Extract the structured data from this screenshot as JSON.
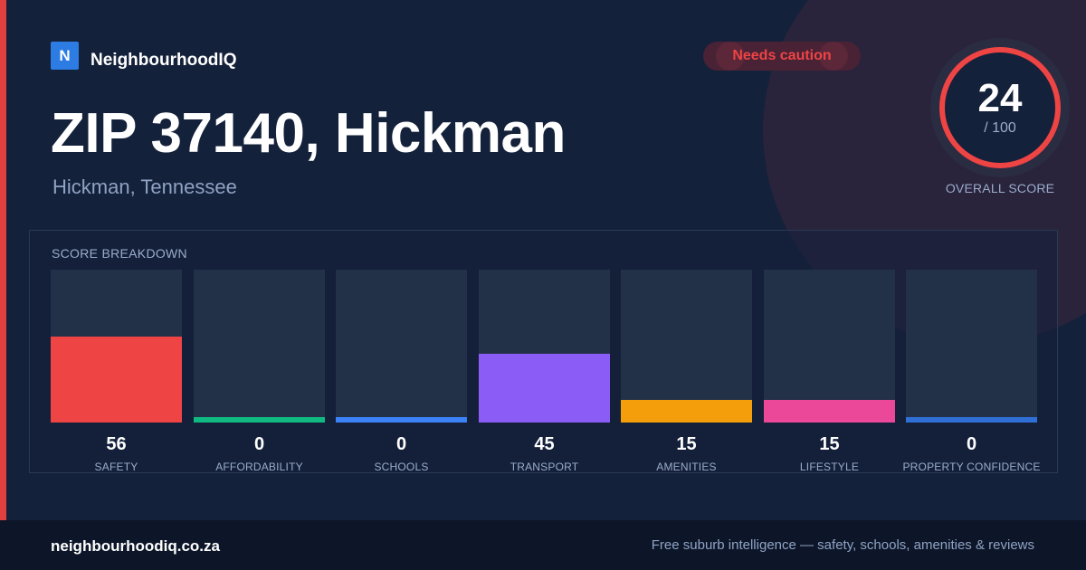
{
  "brand": {
    "logo_letter": "N",
    "name": "NeighbourhoodIQ"
  },
  "header": {
    "title": "ZIP 37140, Hickman",
    "subtitle": "Hickman, Tennessee",
    "badge": "Needs caution"
  },
  "score": {
    "value": "24",
    "max": "/ 100",
    "label": "OVERALL SCORE",
    "ring_color": "#ef4444"
  },
  "breakdown": {
    "title": "SCORE BREAKDOWN",
    "max_value": 100,
    "items": [
      {
        "label": "SAFETY",
        "value": 56,
        "color": "#ef4444"
      },
      {
        "label": "AFFORDABILITY",
        "value": 0,
        "color": "#10b981"
      },
      {
        "label": "SCHOOLS",
        "value": 0,
        "color": "#3b82f6"
      },
      {
        "label": "TRANSPORT",
        "value": 45,
        "color": "#8b5cf6"
      },
      {
        "label": "AMENITIES",
        "value": 15,
        "color": "#f59e0b"
      },
      {
        "label": "LIFESTYLE",
        "value": 15,
        "color": "#ec4899"
      },
      {
        "label": "PROPERTY CONFIDENCE",
        "value": 0,
        "color": "#2f6fd6"
      }
    ]
  },
  "footer": {
    "domain": "neighbourhoodiq.co.za",
    "tagline": "Free suburb intelligence — safety, schools, amenities & reviews"
  }
}
